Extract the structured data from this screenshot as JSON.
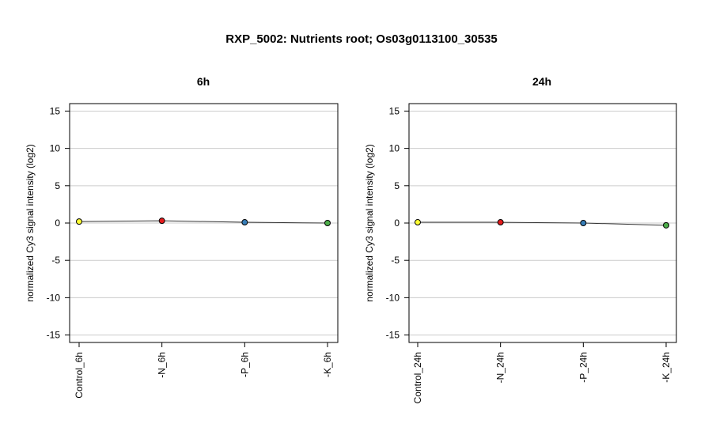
{
  "title": "RXP_5002: Nutrients root; Os03g0113100_30535",
  "chart_data": [
    {
      "type": "line",
      "title": "6h",
      "ylabel": "normalized Cy3 signal intensity (log2)",
      "categories": [
        "Control_6h",
        "-N_6h",
        "-P_6h",
        "-K_6h"
      ],
      "values": [
        0.2,
        0.3,
        0.1,
        0.0
      ],
      "point_colors": [
        "#ffff33",
        "#e41a1c",
        "#377eb8",
        "#4daf4a"
      ],
      "ylim": [
        -16,
        16
      ],
      "yticks": [
        -15,
        -10,
        -5,
        0,
        5,
        10,
        15
      ],
      "grid": true
    },
    {
      "type": "line",
      "title": "24h",
      "ylabel": "normalized Cy3 signal intensity (log2)",
      "categories": [
        "Control_24h",
        "-N_24h",
        "-P_24h",
        "-K_24h"
      ],
      "values": [
        0.1,
        0.1,
        0.0,
        -0.3
      ],
      "point_colors": [
        "#ffff33",
        "#e41a1c",
        "#377eb8",
        "#4daf4a"
      ],
      "ylim": [
        -16,
        16
      ],
      "yticks": [
        -15,
        -10,
        -5,
        0,
        5,
        10,
        15
      ],
      "grid": true
    }
  ]
}
